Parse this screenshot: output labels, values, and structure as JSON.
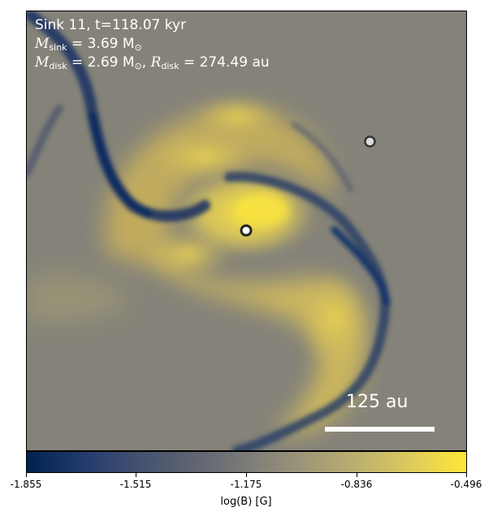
{
  "annotation": {
    "line1": "Sink 11, t=118.07 kyr",
    "m_sink_symbol": "M",
    "m_sink_sub": "sink",
    "m_sink_value": " = 3.69 M",
    "m_sink_unit_sub": "⊙",
    "m_disk_symbol": "M",
    "m_disk_sub": "disk",
    "m_disk_value": " = 2.69 M",
    "m_disk_unit_sub": "⊙",
    "r_disk_sep": ", ",
    "r_disk_symbol": "R",
    "r_disk_sub": "disk",
    "r_disk_value": " = 274.49 au"
  },
  "scale_bar": {
    "label": "125 au"
  },
  "sinks": [
    {
      "id": "sink-central"
    },
    {
      "id": "sink-companion"
    }
  ],
  "colorbar": {
    "label": "log(B) [G]",
    "ticks": [
      "-1.855",
      "-1.515",
      "-1.175",
      "-0.836",
      "-0.496"
    ],
    "colormap": "cividis",
    "min": -1.855,
    "max": -0.496
  },
  "colors": {
    "low": "#00224e",
    "mid": "#7c7b78",
    "high": "#fee838"
  }
}
